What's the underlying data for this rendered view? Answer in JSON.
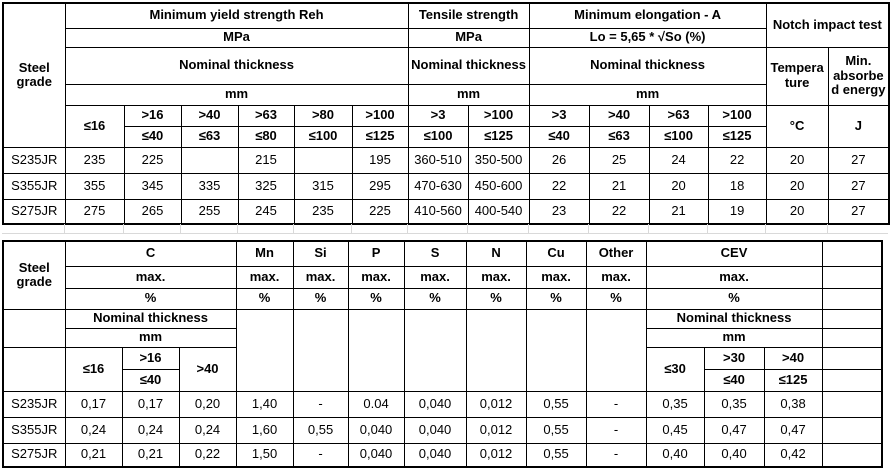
{
  "t1": {
    "steel_grade": "Steel\ngrade",
    "yield_title": "Minimum yield strength Reh",
    "tensile_title": "Tensile strength",
    "elong_title": "Minimum elongation - A",
    "notch_title": "Notch impact test",
    "mpa": "MPa",
    "elong_formula": "Lo = 5,65 * √So (%)",
    "nominal_thickness": "Nominal thickness",
    "mm": "mm",
    "temperature": "Tempera\nture",
    "min_energy": "Min.\nabsorbe\nd energy",
    "deg_c": "°C",
    "joule": "J",
    "cols": {
      "yield": {
        "c1": "≤16",
        "c2t": ">16",
        "c2b": "≤40",
        "c3t": ">40",
        "c3b": "≤63",
        "c4t": ">63",
        "c4b": "≤80",
        "c5t": ">80",
        "c5b": "≤100",
        "c6t": ">100",
        "c6b": "≤125"
      },
      "tensile": {
        "c1t": ">3",
        "c1b": "≤100",
        "c2t": ">100",
        "c2b": "≤125"
      },
      "elong": {
        "c1t": ">3",
        "c1b": "≤40",
        "c2t": ">40",
        "c2b": "≤63",
        "c3t": ">63",
        "c3b": "≤100",
        "c4t": ">100",
        "c4b": "≤125"
      }
    },
    "rows": [
      {
        "grade": "S235JR",
        "v": [
          "235",
          "225",
          "",
          "215",
          "",
          "195",
          "360-510",
          "350-500",
          "26",
          "25",
          "24",
          "22",
          "20",
          "27"
        ]
      },
      {
        "grade": "S355JR",
        "v": [
          "355",
          "345",
          "335",
          "325",
          "315",
          "295",
          "470-630",
          "450-600",
          "22",
          "21",
          "20",
          "18",
          "20",
          "27"
        ]
      },
      {
        "grade": "S275JR",
        "v": [
          "275",
          "265",
          "255",
          "245",
          "235",
          "225",
          "410-560",
          "400-540",
          "23",
          "22",
          "21",
          "19",
          "20",
          "27"
        ]
      }
    ]
  },
  "t2": {
    "steel_grade": "Steel\ngrade",
    "max": "max.",
    "pct": "%",
    "nominal_thickness": "Nominal thickness",
    "mm": "mm",
    "el": {
      "c": "C",
      "mn": "Mn",
      "si": "Si",
      "p": "P",
      "s": "S",
      "n": "N",
      "cu": "Cu",
      "other": "Other",
      "cev": "CEV"
    },
    "c_cols": {
      "c1": "≤16",
      "c2t": ">16",
      "c2b": "≤40",
      "c3": ">40"
    },
    "cev_cols": {
      "c1": "≤30",
      "c2t": ">30",
      "c2b": "≤40",
      "c3t": ">40",
      "c3b": "≤125"
    },
    "rows": [
      {
        "grade": "S235JR",
        "v": [
          "0,17",
          "0,17",
          "0,20",
          "1,40",
          "-",
          "0.04",
          "0,040",
          "0,012",
          "0,55",
          "-",
          "0,35",
          "0,35",
          "0,38",
          ""
        ]
      },
      {
        "grade": "S355JR",
        "v": [
          "0,24",
          "0,24",
          "0,24",
          "1,60",
          "0,55",
          "0,040",
          "0,040",
          "0,012",
          "0,55",
          "-",
          "0,45",
          "0,47",
          "0,47",
          ""
        ]
      },
      {
        "grade": "S275JR",
        "v": [
          "0,21",
          "0,21",
          "0,22",
          "1,50",
          "-",
          "0,040",
          "0,040",
          "0,012",
          "0,55",
          "-",
          "0,40",
          "0,40",
          "0,42",
          ""
        ]
      }
    ]
  }
}
